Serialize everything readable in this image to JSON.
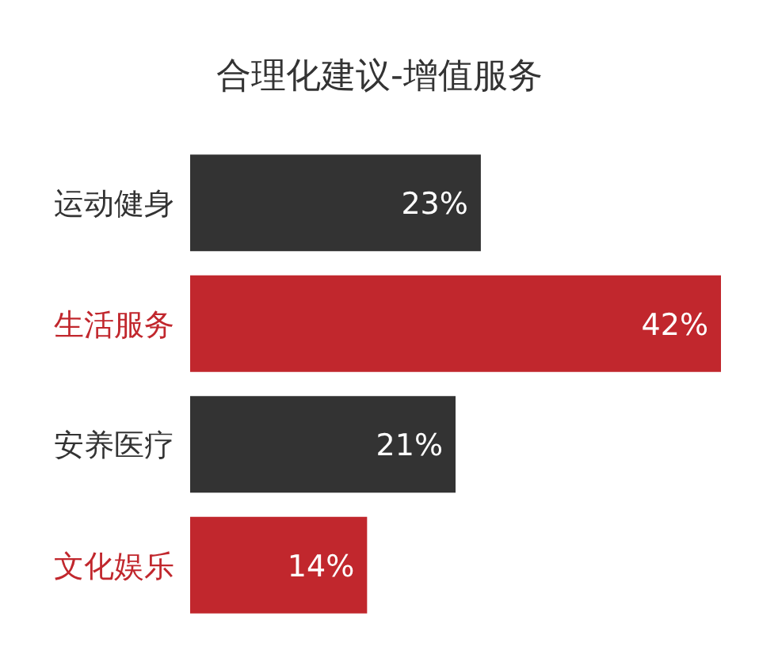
{
  "chart_data": {
    "type": "bar",
    "orientation": "horizontal",
    "title": "合理化建议-增值服务",
    "categories": [
      "运动健身",
      "生活服务",
      "安养医疗",
      "文化娱乐"
    ],
    "values": [
      23,
      42,
      21,
      14
    ],
    "value_labels": [
      "23%",
      "42%",
      "21%",
      "14%"
    ],
    "colors": [
      "#333333",
      "#c1272d",
      "#333333",
      "#c1272d"
    ]
  }
}
